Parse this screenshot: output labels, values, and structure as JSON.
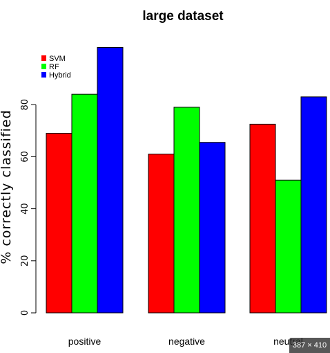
{
  "chart_data": {
    "type": "bar",
    "title": "large dataset",
    "xlabel": "",
    "ylabel": "% correctly classified",
    "categories": [
      "positive",
      "negative",
      "neutral"
    ],
    "series": [
      {
        "name": "SVM",
        "values": [
          69,
          61,
          72.5
        ]
      },
      {
        "name": "RF",
        "values": [
          84,
          79,
          51
        ]
      },
      {
        "name": "Hybrid",
        "values": [
          102,
          65.5,
          83
        ]
      }
    ],
    "colors": {
      "SVM": "#ff0000",
      "RF": "#00ff00",
      "Hybrid": "#0000ff"
    },
    "ylim": [
      0,
      102
    ],
    "yticks": [
      "0",
      "20",
      "40",
      "60",
      "80"
    ],
    "legend_position": "top-left",
    "grid": false
  },
  "overlay": {
    "image_size_badge": "387 × 410"
  }
}
